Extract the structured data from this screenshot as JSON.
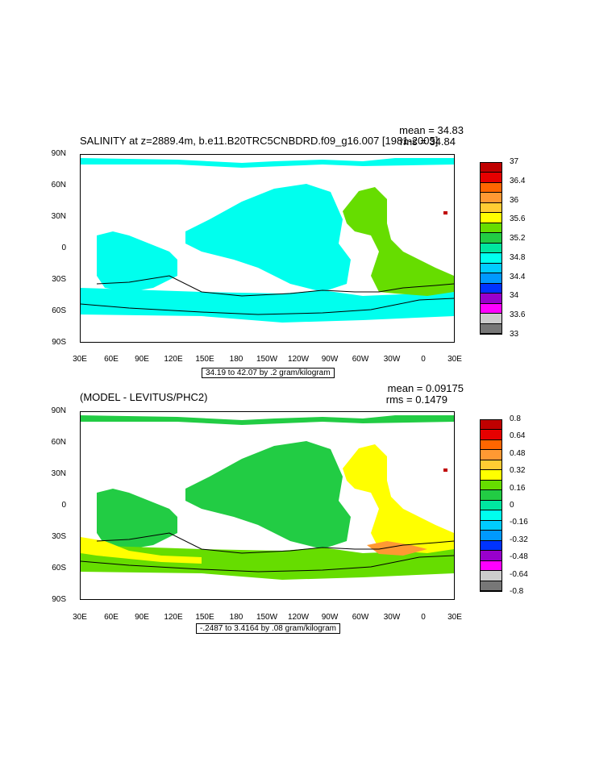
{
  "panel1": {
    "title": "SALINITY at z=2889.4m, b.e11.B20TRC5CNBDRD.f09_g16.007 [1981-2005]",
    "mean": "mean = 34.83",
    "rms": "rms = 34.84",
    "contour_label": "34.19 to 42.07 by .2 gram/kilogram",
    "colorbar_labels": [
      "37",
      "36.4",
      "36",
      "35.6",
      "35.2",
      "34.8",
      "34.4",
      "34",
      "33.6",
      "33"
    ],
    "colors": [
      "#c00000",
      "#e60000",
      "#ff6600",
      "#ff9933",
      "#ffcc33",
      "#ffff00",
      "#66dd00",
      "#22cc44",
      "#00e6a0",
      "#00ffee",
      "#00ccff",
      "#0099ff",
      "#0033ff",
      "#9900cc",
      "#ff00ff",
      "#cccccc",
      "#777777"
    ]
  },
  "panel2": {
    "title": "(MODEL - LEVITUS/PHC2)",
    "mean": "mean = 0.09175",
    "rms": "rms = 0.1479",
    "contour_label": "-.2487 to 3.4164 by .08 gram/kilogram",
    "colorbar_labels": [
      "0.8",
      "0.64",
      "0.48",
      "0.32",
      "0.16",
      "0",
      "-0.16",
      "-0.32",
      "-0.48",
      "-0.64",
      "-0.8"
    ],
    "colors": [
      "#c00000",
      "#e60000",
      "#ff6600",
      "#ff9933",
      "#ffcc33",
      "#ffff00",
      "#66dd00",
      "#22cc44",
      "#00e6a0",
      "#00ffee",
      "#00ccff",
      "#0099ff",
      "#0033ff",
      "#9900cc",
      "#ff00ff",
      "#cccccc",
      "#777777"
    ]
  },
  "y_ticks": [
    "90N",
    "60N",
    "30N",
    "0",
    "30S",
    "60S",
    "90S"
  ],
  "x_ticks": [
    "30E",
    "60E",
    "90E",
    "120E",
    "150E",
    "180",
    "150W",
    "120W",
    "90W",
    "60W",
    "30W",
    "0",
    "30E"
  ],
  "chart_data": [
    {
      "type": "heatmap",
      "title": "SALINITY at z=2889.4m, b.e11.B20TRC5CNBDRD.f09_g16.007 [1981-2005]",
      "units": "gram/kilogram",
      "mean": 34.83,
      "rms": 34.84,
      "contour_min": 34.19,
      "contour_max": 42.07,
      "contour_interval": 0.2,
      "colorbar_range": [
        33,
        37
      ],
      "xlabel": "",
      "ylabel": ""
    },
    {
      "type": "heatmap",
      "title": "(MODEL - LEVITUS/PHC2)",
      "units": "gram/kilogram",
      "mean": 0.09175,
      "rms": 0.1479,
      "contour_min": -0.2487,
      "contour_max": 3.4164,
      "contour_interval": 0.08,
      "colorbar_range": [
        -0.8,
        0.8
      ],
      "xlabel": "",
      "ylabel": ""
    }
  ]
}
